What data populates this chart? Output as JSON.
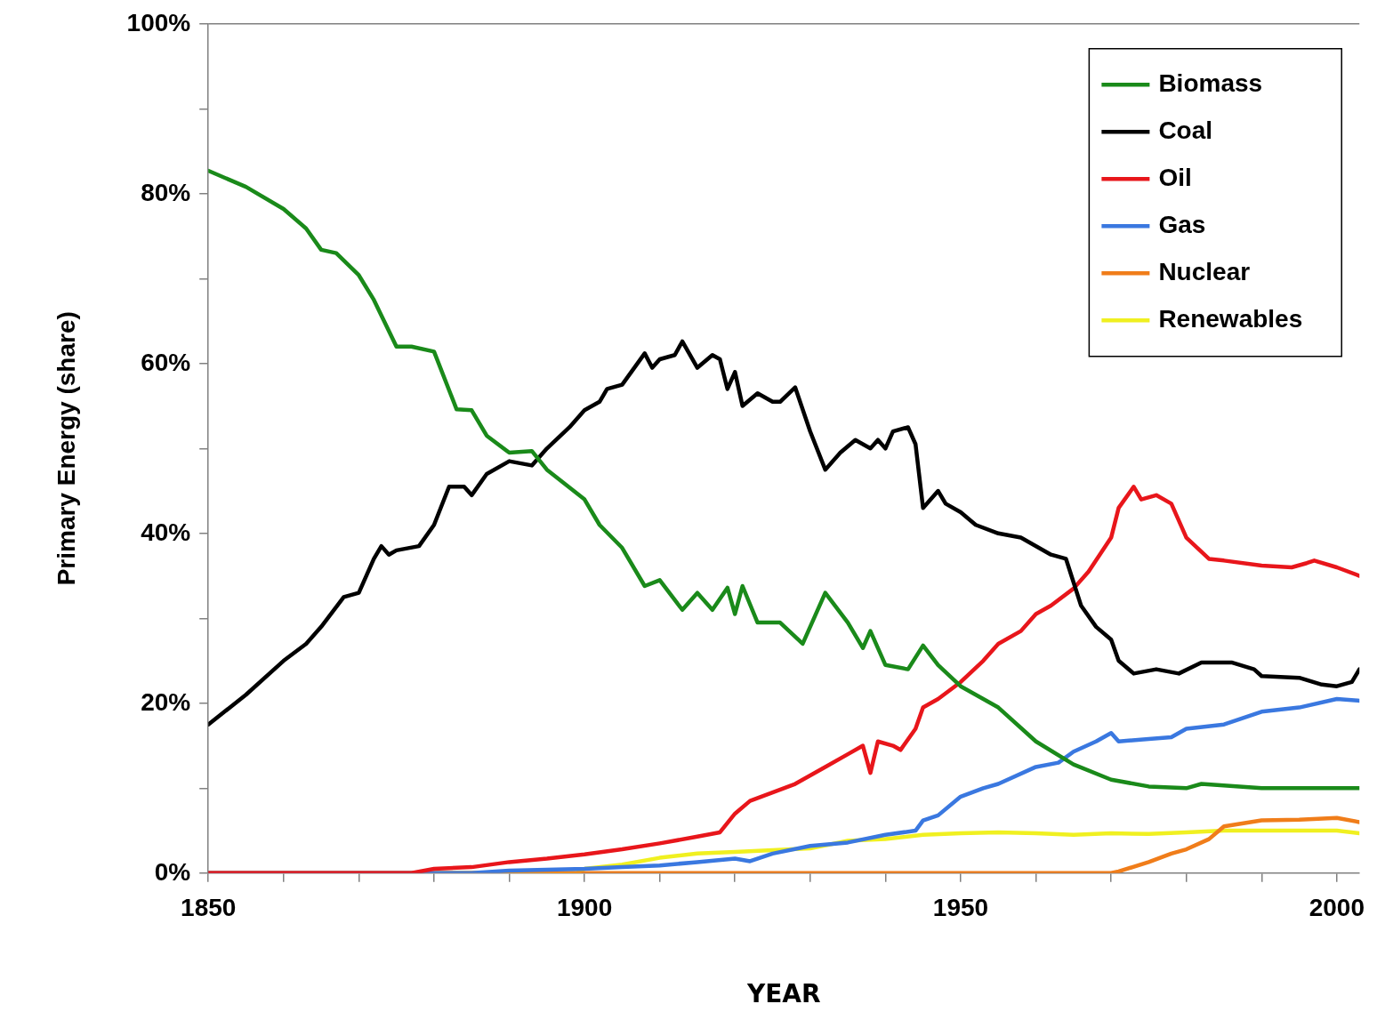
{
  "chart_data": {
    "type": "line",
    "xlabel": "YEAR",
    "ylabel": "Primary Energy (share)",
    "xlim": [
      1850,
      2003
    ],
    "ylim": [
      0,
      100
    ],
    "xticks": [
      1850,
      {
        "value": 1860,
        "label": null
      },
      {
        "value": 1870,
        "label": null
      },
      {
        "value": 1880,
        "label": null
      },
      {
        "value": 1890,
        "label": null
      },
      1900,
      {
        "value": 1910,
        "label": null
      },
      {
        "value": 1920,
        "label": null
      },
      {
        "value": 1930,
        "label": null
      },
      {
        "value": 1940,
        "label": null
      },
      1950,
      {
        "value": 1960,
        "label": null
      },
      {
        "value": 1970,
        "label": null
      },
      {
        "value": 1980,
        "label": null
      },
      {
        "value": 1990,
        "label": null
      },
      2000
    ],
    "yticks": [
      {
        "value": 0,
        "label": "0%"
      },
      {
        "value": 10,
        "label": null
      },
      {
        "value": 20,
        "label": "20%"
      },
      {
        "value": 30,
        "label": null
      },
      {
        "value": 40,
        "label": "40%"
      },
      {
        "value": 50,
        "label": null
      },
      {
        "value": 60,
        "label": "60%"
      },
      {
        "value": 70,
        "label": null
      },
      {
        "value": 80,
        "label": "80%"
      },
      {
        "value": 90,
        "label": null
      },
      {
        "value": 100,
        "label": "100%"
      }
    ],
    "grid": false,
    "legend": "top right",
    "marker": "none",
    "line_style": "solid",
    "series": [
      {
        "name": "Biomass",
        "color": "#1a8a1a",
        "x": [
          1850,
          1855,
          1860,
          1863,
          1865,
          1867,
          1870,
          1872,
          1875,
          1877,
          1880,
          1883,
          1885,
          1887,
          1890,
          1893,
          1895,
          1900,
          1902,
          1905,
          1908,
          1910,
          1913,
          1915,
          1917,
          1919,
          1920,
          1921,
          1923,
          1926,
          1929,
          1932,
          1935,
          1937,
          1938,
          1940,
          1943,
          1945,
          1947,
          1950,
          1955,
          1960,
          1965,
          1970,
          1975,
          1980,
          1982,
          1990,
          2000,
          2003
        ],
        "values": [
          82.7,
          80.8,
          78.2,
          75.9,
          73.4,
          73,
          70.4,
          67.5,
          62,
          62,
          61.4,
          54.6,
          54.5,
          51.5,
          49.5,
          49.7,
          47.5,
          44,
          41,
          38.3,
          33.8,
          34.5,
          31,
          33,
          31,
          33.6,
          30.5,
          33.8,
          29.5,
          29.5,
          27,
          33,
          29.5,
          26.5,
          28.5,
          24.5,
          24,
          26.8,
          24.5,
          22,
          19.5,
          15.5,
          12.8,
          11,
          10.2,
          10,
          10.5,
          10,
          10,
          10
        ]
      },
      {
        "name": "Coal",
        "color": "#000000",
        "x": [
          1850,
          1855,
          1860,
          1863,
          1865,
          1868,
          1870,
          1872,
          1873,
          1874,
          1875,
          1878,
          1880,
          1882,
          1884,
          1885,
          1887,
          1890,
          1893,
          1895,
          1898,
          1900,
          1902,
          1903,
          1905,
          1908,
          1909,
          1910,
          1912,
          1913,
          1915,
          1917,
          1918,
          1919,
          1920,
          1921,
          1923,
          1925,
          1926,
          1928,
          1930,
          1932,
          1934,
          1936,
          1938,
          1939,
          1940,
          1941,
          1943,
          1944,
          1945,
          1947,
          1948,
          1950,
          1952,
          1955,
          1958,
          1962,
          1964,
          1966,
          1968,
          1970,
          1971,
          1973,
          1976,
          1979,
          1982,
          1986,
          1989,
          1990,
          1995,
          1998,
          2000,
          2002,
          2003
        ],
        "values": [
          17.5,
          21,
          25,
          27,
          29,
          32.5,
          33,
          37,
          38.5,
          37.5,
          38,
          38.5,
          41,
          45.5,
          45.5,
          44.5,
          47,
          48.5,
          48,
          50,
          52.5,
          54.5,
          55.5,
          57,
          57.5,
          61.2,
          59.5,
          60.5,
          61,
          62.6,
          59.5,
          61,
          60.5,
          57,
          59,
          55,
          56.5,
          55.5,
          55.5,
          57.2,
          52,
          47.5,
          49.5,
          51,
          50,
          51,
          50,
          52,
          52.5,
          50.5,
          43,
          45,
          43.5,
          42.5,
          41,
          40,
          39.5,
          37.5,
          37,
          31.5,
          29,
          27.5,
          25,
          23.5,
          24,
          23.5,
          24.8,
          24.8,
          24,
          23.2,
          23,
          22.2,
          22,
          22.5,
          24
        ]
      },
      {
        "name": "Oil",
        "color": "#e8161b",
        "x": [
          1850,
          1877,
          1880,
          1885,
          1890,
          1895,
          1900,
          1905,
          1910,
          1915,
          1918,
          1920,
          1922,
          1925,
          1928,
          1930,
          1932,
          1935,
          1937,
          1938,
          1939,
          1941,
          1942,
          1944,
          1945,
          1947,
          1950,
          1953,
          1955,
          1958,
          1960,
          1962,
          1965,
          1967,
          1970,
          1971,
          1973,
          1974,
          1976,
          1978,
          1980,
          1983,
          1985,
          1990,
          1994,
          1996,
          1997,
          2000,
          2003
        ],
        "values": [
          0,
          0,
          0.5,
          0.7,
          1.3,
          1.7,
          2.2,
          2.8,
          3.5,
          4.3,
          4.8,
          7,
          8.5,
          9.5,
          10.5,
          11.5,
          12.5,
          14,
          15,
          11.8,
          15.5,
          15,
          14.5,
          17,
          19.5,
          20.5,
          22.5,
          25,
          27,
          28.5,
          30.5,
          31.5,
          33.5,
          35.5,
          39.5,
          43,
          45.5,
          44,
          44.5,
          43.5,
          39.5,
          37,
          36.8,
          36.2,
          36,
          36.5,
          36.8,
          36,
          35
        ]
      },
      {
        "name": "Gas",
        "color": "#3a78e0",
        "x": [
          1850,
          1885,
          1890,
          1900,
          1905,
          1910,
          1915,
          1920,
          1922,
          1925,
          1930,
          1935,
          1940,
          1944,
          1945,
          1947,
          1950,
          1953,
          1955,
          1960,
          1963,
          1965,
          1968,
          1970,
          1971,
          1975,
          1978,
          1980,
          1985,
          1990,
          1995,
          2000,
          2003
        ],
        "values": [
          0,
          0,
          0.3,
          0.5,
          0.7,
          0.9,
          1.3,
          1.7,
          1.4,
          2.3,
          3.2,
          3.6,
          4.5,
          5,
          6.2,
          6.8,
          9,
          10,
          10.5,
          12.5,
          13,
          14.3,
          15.5,
          16.5,
          15.5,
          15.8,
          16,
          17,
          17.5,
          19,
          19.5,
          20.5,
          20.3
        ]
      },
      {
        "name": "Nuclear",
        "color": "#f07d1a",
        "x": [
          1850,
          1970,
          1971,
          1975,
          1978,
          1980,
          1983,
          1985,
          1990,
          1995,
          2000,
          2003
        ],
        "values": [
          0,
          0,
          0.2,
          1.3,
          2.3,
          2.8,
          4,
          5.5,
          6.2,
          6.3,
          6.5,
          6
        ]
      },
      {
        "name": "Renewables",
        "color": "#f0f020",
        "x": [
          1850,
          1899,
          1900,
          1905,
          1910,
          1915,
          1920,
          1925,
          1930,
          1935,
          1940,
          1945,
          1950,
          1955,
          1960,
          1965,
          1970,
          1975,
          1980,
          1985,
          1990,
          1995,
          2000,
          2003
        ],
        "values": [
          0,
          0,
          0.5,
          1,
          1.8,
          2.3,
          2.5,
          2.7,
          2.9,
          3.8,
          4,
          4.5,
          4.7,
          4.8,
          4.7,
          4.5,
          4.7,
          4.6,
          4.8,
          5,
          5,
          5,
          5,
          4.7
        ]
      }
    ]
  }
}
